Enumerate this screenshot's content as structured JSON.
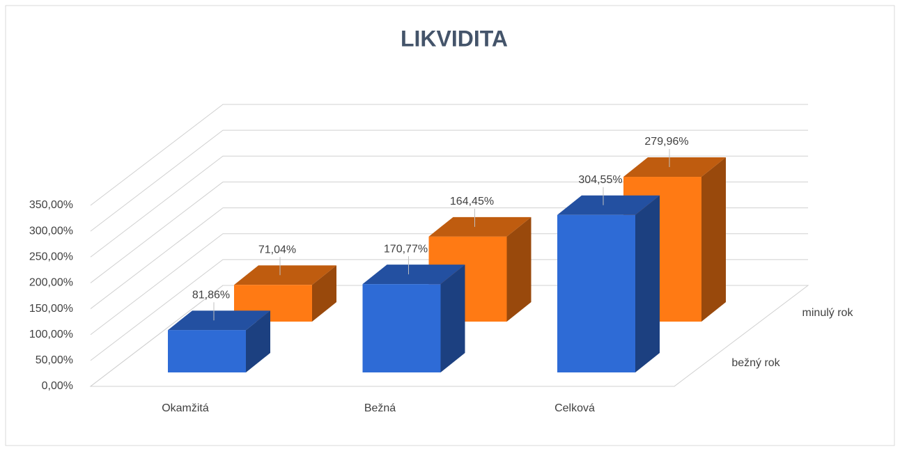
{
  "chart_data": {
    "type": "bar3d",
    "title": "LIKVIDITA",
    "categories": [
      "Okamžitá",
      "Bežná",
      "Celková"
    ],
    "series": [
      {
        "name": "bežný rok",
        "color": "#2e6bd6",
        "values": [
          81.86,
          170.77,
          304.55
        ],
        "value_labels": [
          "81,86%",
          "170,77%",
          "304,55%"
        ]
      },
      {
        "name": "minulý rok",
        "color": "#ff7a14",
        "values": [
          71.04,
          164.45,
          279.96
        ],
        "value_labels": [
          "71,04%",
          "164,45%",
          "279,96%"
        ]
      }
    ],
    "ylim": [
      0,
      350
    ],
    "yticks": [
      {
        "value": 0,
        "label": "0,00%"
      },
      {
        "value": 50,
        "label": "50,00%"
      },
      {
        "value": 100,
        "label": "100,00%"
      },
      {
        "value": 150,
        "label": "150,00%"
      },
      {
        "value": 200,
        "label": "200,00%"
      },
      {
        "value": 250,
        "label": "250,00%"
      },
      {
        "value": 300,
        "label": "300,00%"
      },
      {
        "value": 350,
        "label": "350,00%"
      }
    ],
    "grid": true
  }
}
